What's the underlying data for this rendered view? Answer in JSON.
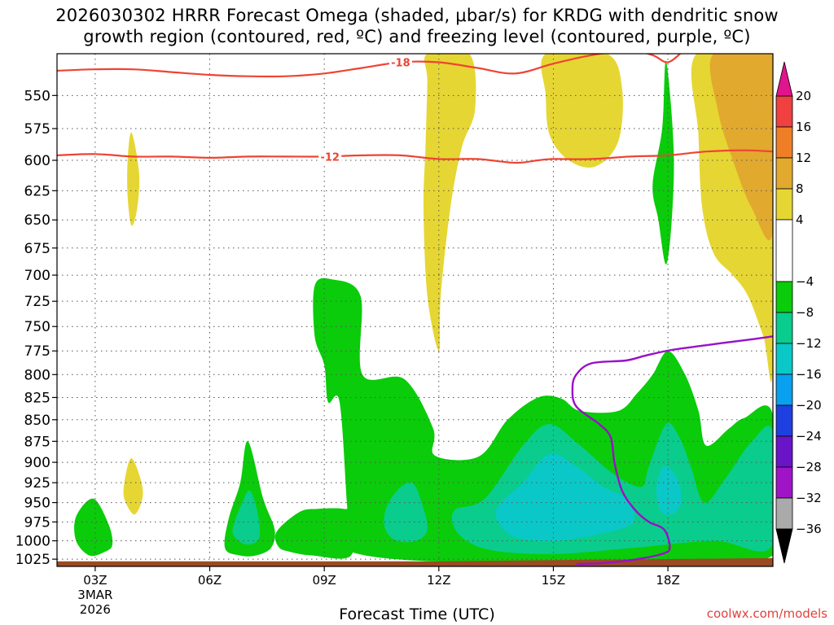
{
  "header": {
    "title_line1": "2026030302 HRRR Forecast Omega (shaded, μbar/s) for KRDG with dendritic snow",
    "title_line2": "growth region (contoured, red, ºC) and freezing level (contoured, purple, ºC)"
  },
  "footer": {
    "xaxis_title": "Forecast Time (UTC)",
    "credit": "coolwx.com/models"
  },
  "colors": {
    "dgz_contour": "#ee4433",
    "freezing_level": "#9a10c8",
    "ground": "#9b4a22"
  },
  "chart_data": {
    "type": "heatmap",
    "title": "2026030302 HRRR Forecast Omega (shaded, μbar/s) for KRDG with dendritic snow growth region (contoured, red, ºC) and freezing level (contoured, purple, ºC)",
    "xlabel": "Forecast Time (UTC)",
    "ylabel": "",
    "x_hours": [
      2,
      20.75
    ],
    "x_ticks": [
      {
        "hour": 3,
        "label": "03Z",
        "sub1": "3MAR",
        "sub2": "2026"
      },
      {
        "hour": 6,
        "label": "06Z"
      },
      {
        "hour": 9,
        "label": "09Z"
      },
      {
        "hour": 12,
        "label": "12Z"
      },
      {
        "hour": 15,
        "label": "15Z"
      },
      {
        "hour": 18,
        "label": "18Z"
      }
    ],
    "y_pressure_range_hPa": [
      1035,
      520
    ],
    "y_ticks": [
      550,
      575,
      600,
      625,
      650,
      675,
      700,
      725,
      750,
      775,
      800,
      825,
      850,
      875,
      900,
      925,
      950,
      975,
      1000,
      1025
    ],
    "colorbar": {
      "labels": [
        20,
        16,
        12,
        8,
        4,
        -4,
        -8,
        -12,
        -16,
        -20,
        -24,
        -28,
        -32,
        -36
      ],
      "bins": [
        {
          "from": 16,
          "to": 20,
          "color": "#f04040"
        },
        {
          "from": 12,
          "to": 16,
          "color": "#ee7f26"
        },
        {
          "from": 8,
          "to": 12,
          "color": "#e1a92e"
        },
        {
          "from": 4,
          "to": 8,
          "color": "#e6d633"
        },
        {
          "from": -4,
          "to": 4,
          "color": "#ffffff"
        },
        {
          "from": -8,
          "to": -4,
          "color": "#0acc0a"
        },
        {
          "from": -12,
          "to": -8,
          "color": "#0acc8c"
        },
        {
          "from": -16,
          "to": -12,
          "color": "#0ac8c8"
        },
        {
          "from": -20,
          "to": -16,
          "color": "#0aa0f0"
        },
        {
          "from": -24,
          "to": -20,
          "color": "#1e40e0"
        },
        {
          "from": -28,
          "to": -24,
          "color": "#6a14c8"
        },
        {
          "from": -32,
          "to": -28,
          "color": "#a014c8"
        },
        {
          "from": -36,
          "to": -32,
          "color": "#aaaaaa"
        }
      ],
      "top_arrow_color": "#e0148c",
      "bottom_arrow_color": "#000000"
    },
    "omega_regions": [
      {
        "level": 4,
        "color": "#e6d633",
        "points": [
          [
            3.95,
            578
          ],
          [
            4.15,
            610
          ],
          [
            4.1,
            640
          ],
          [
            3.95,
            655
          ],
          [
            3.85,
            630
          ],
          [
            3.85,
            600
          ]
        ]
      },
      {
        "level": 4,
        "color": "#e6d633",
        "points": [
          [
            3.75,
            930
          ],
          [
            3.95,
            895
          ],
          [
            4.25,
            935
          ],
          [
            4.05,
            965
          ],
          [
            3.8,
            950
          ]
        ]
      },
      {
        "level": 4,
        "color": "#e6d633",
        "points": [
          [
            11.7,
            520
          ],
          [
            12.8,
            520
          ],
          [
            12.95,
            560
          ],
          [
            12.6,
            590
          ],
          [
            12.3,
            640
          ],
          [
            12.05,
            720
          ],
          [
            12,
            775
          ],
          [
            11.7,
            720
          ],
          [
            11.6,
            640
          ],
          [
            11.65,
            590
          ],
          [
            11.7,
            540
          ]
        ]
      },
      {
        "level": 4,
        "color": "#e6d633",
        "points": [
          [
            14.8,
            520
          ],
          [
            16.4,
            520
          ],
          [
            16.8,
            545
          ],
          [
            16.7,
            585
          ],
          [
            16.1,
            605
          ],
          [
            15.4,
            600
          ],
          [
            14.9,
            580
          ],
          [
            14.8,
            550
          ]
        ]
      },
      {
        "level": 4,
        "color": "#e6d633",
        "points": [
          [
            18.75,
            520
          ],
          [
            20.75,
            520
          ],
          [
            20.75,
            790
          ],
          [
            20.5,
            760
          ],
          [
            20.1,
            720
          ],
          [
            19.7,
            700
          ],
          [
            19.2,
            680
          ],
          [
            18.9,
            640
          ],
          [
            18.8,
            580
          ]
        ]
      },
      {
        "level": 8,
        "color": "#e1a92e",
        "points": [
          [
            19.2,
            520
          ],
          [
            20.75,
            520
          ],
          [
            20.75,
            660
          ],
          [
            20.2,
            640
          ],
          [
            19.7,
            600
          ],
          [
            19.3,
            560
          ]
        ]
      },
      {
        "level": -4,
        "color": "#0acc0a",
        "points": [
          [
            17.95,
            525
          ],
          [
            18.15,
            590
          ],
          [
            18.1,
            650
          ],
          [
            17.95,
            690
          ],
          [
            17.75,
            650
          ],
          [
            17.6,
            620
          ],
          [
            17.85,
            575
          ]
        ]
      },
      {
        "level": -4,
        "color": "#0acc0a",
        "points": [
          [
            2.5,
            968
          ],
          [
            2.95,
            945
          ],
          [
            3.35,
            978
          ],
          [
            3.45,
            1005
          ],
          [
            3.25,
            1015
          ],
          [
            2.85,
            1020
          ],
          [
            2.5,
            1000
          ]
        ]
      },
      {
        "level": -4,
        "color": "#0acc0a",
        "points": [
          [
            6.4,
            1010
          ],
          [
            6.5,
            970
          ],
          [
            6.8,
            925
          ],
          [
            7,
            875
          ],
          [
            7.4,
            945
          ],
          [
            7.7,
            985
          ],
          [
            7.6,
            1010
          ],
          [
            7.2,
            1020
          ],
          [
            6.8,
            1020
          ]
        ]
      },
      {
        "level": -4,
        "color": "#0acc0a",
        "points": [
          [
            7.75,
            988
          ],
          [
            8.35,
            962
          ],
          [
            8.85,
            958
          ],
          [
            9.5,
            958
          ],
          [
            9.7,
            965
          ],
          [
            9.7,
            1020
          ],
          [
            8.7,
            1020
          ],
          [
            8.1,
            1015
          ],
          [
            7.8,
            1008
          ]
        ]
      },
      {
        "level": -4,
        "color": "#0acc0a",
        "points": [
          [
            8.75,
            710
          ],
          [
            9.2,
            704
          ],
          [
            9.95,
            720
          ],
          [
            10,
            800
          ],
          [
            11.1,
            805
          ],
          [
            11.85,
            860
          ],
          [
            11.9,
            892
          ],
          [
            13.05,
            893
          ],
          [
            13.8,
            850
          ],
          [
            14.6,
            825
          ],
          [
            15.2,
            826
          ],
          [
            15.7,
            840
          ],
          [
            16.7,
            840
          ],
          [
            17.2,
            820
          ],
          [
            17.6,
            800
          ],
          [
            18,
            775
          ],
          [
            18.45,
            800
          ],
          [
            18.8,
            840
          ],
          [
            19,
            880
          ],
          [
            19.6,
            860
          ],
          [
            20,
            848
          ],
          [
            20.75,
            845
          ],
          [
            20.75,
            1020
          ],
          [
            14,
            1030
          ],
          [
            9.7,
            1015
          ],
          [
            9.6,
            955
          ],
          [
            9.4,
            830
          ],
          [
            9.1,
            830
          ],
          [
            9,
            790
          ],
          [
            8.75,
            760
          ]
        ]
      },
      {
        "level": -8,
        "color": "#0acc8c",
        "points": [
          [
            6.6,
            985
          ],
          [
            6.85,
            950
          ],
          [
            7.05,
            935
          ],
          [
            7.25,
            962
          ],
          [
            7.3,
            995
          ],
          [
            7.05,
            1005
          ],
          [
            6.75,
            1000
          ]
        ]
      },
      {
        "level": -8,
        "color": "#0acc8c",
        "points": [
          [
            10.6,
            960
          ],
          [
            10.9,
            935
          ],
          [
            11.3,
            925
          ],
          [
            11.55,
            950
          ],
          [
            11.7,
            985
          ],
          [
            11.4,
            1000
          ],
          [
            10.9,
            1000
          ],
          [
            10.6,
            985
          ]
        ]
      },
      {
        "level": -8,
        "color": "#0acc8c",
        "points": [
          [
            12.4,
            960
          ],
          [
            13.2,
            945
          ],
          [
            14.2,
            880
          ],
          [
            14.9,
            855
          ],
          [
            15.7,
            880
          ],
          [
            16.6,
            915
          ],
          [
            17.3,
            930
          ],
          [
            17.5,
            905
          ],
          [
            17.95,
            855
          ],
          [
            18.3,
            870
          ],
          [
            18.6,
            905
          ],
          [
            18.95,
            950
          ],
          [
            19.5,
            920
          ],
          [
            20.2,
            875
          ],
          [
            20.75,
            865
          ],
          [
            20.75,
            1005
          ],
          [
            19.2,
            1000
          ],
          [
            17,
            1010
          ],
          [
            15,
            1018
          ],
          [
            13.3,
            1012
          ],
          [
            12.5,
            990
          ]
        ]
      },
      {
        "level": -12,
        "color": "#0ac8c8",
        "points": [
          [
            13.5,
            960
          ],
          [
            14.2,
            925
          ],
          [
            14.9,
            890
          ],
          [
            15.6,
            905
          ],
          [
            16.3,
            930
          ],
          [
            16.9,
            945
          ],
          [
            17.1,
            975
          ],
          [
            16.3,
            990
          ],
          [
            15,
            1000
          ],
          [
            13.9,
            993
          ]
        ]
      },
      {
        "level": -12,
        "color": "#0ac8c8",
        "points": [
          [
            17.7,
            930
          ],
          [
            17.9,
            905
          ],
          [
            18.25,
            920
          ],
          [
            18.35,
            950
          ],
          [
            18.1,
            965
          ],
          [
            17.8,
            960
          ]
        ]
      }
    ],
    "dgz_contours": [
      {
        "label": "-18",
        "label_hour": 11.0,
        "points": [
          [
            2,
            532
          ],
          [
            3,
            531
          ],
          [
            4,
            531
          ],
          [
            5,
            533
          ],
          [
            6,
            535
          ],
          [
            7,
            536
          ],
          [
            8,
            536
          ],
          [
            9,
            534
          ],
          [
            10,
            530
          ],
          [
            11,
            526
          ],
          [
            12,
            526
          ],
          [
            13,
            530
          ],
          [
            14,
            534
          ],
          [
            15,
            527
          ],
          [
            16,
            521
          ],
          [
            17,
            518
          ],
          [
            17.6,
            521
          ],
          [
            18,
            526
          ],
          [
            18.4,
            518
          ]
        ]
      },
      {
        "label": "-12",
        "label_hour": 9.15,
        "points": [
          [
            2,
            596
          ],
          [
            3,
            595
          ],
          [
            4,
            597
          ],
          [
            5,
            597
          ],
          [
            6,
            598
          ],
          [
            7,
            597
          ],
          [
            8,
            597
          ],
          [
            9,
            597
          ],
          [
            10,
            596
          ],
          [
            11,
            596
          ],
          [
            12,
            599
          ],
          [
            13,
            599
          ],
          [
            14,
            602
          ],
          [
            14.6,
            600
          ],
          [
            15,
            599
          ],
          [
            16,
            599
          ],
          [
            17,
            597
          ],
          [
            18,
            596
          ],
          [
            19,
            593
          ],
          [
            20,
            592
          ],
          [
            20.75,
            593
          ]
        ]
      }
    ],
    "freezing_level": {
      "label": "",
      "points": [
        [
          15.6,
          1032
        ],
        [
          16.4,
          1030
        ],
        [
          17.2,
          1025
        ],
        [
          17.9,
          1017
        ],
        [
          18.05,
          1008
        ],
        [
          17.9,
          985
        ],
        [
          17.5,
          975
        ],
        [
          17.15,
          960
        ],
        [
          16.8,
          935
        ],
        [
          16.6,
          900
        ],
        [
          16.5,
          870
        ],
        [
          16.2,
          855
        ],
        [
          15.6,
          835
        ],
        [
          15.5,
          815
        ],
        [
          15.6,
          800
        ],
        [
          16,
          788
        ],
        [
          16.9,
          785
        ],
        [
          17.4,
          780
        ],
        [
          18.1,
          774
        ],
        [
          19.2,
          768
        ],
        [
          20.2,
          763
        ],
        [
          20.75,
          760
        ]
      ]
    }
  }
}
